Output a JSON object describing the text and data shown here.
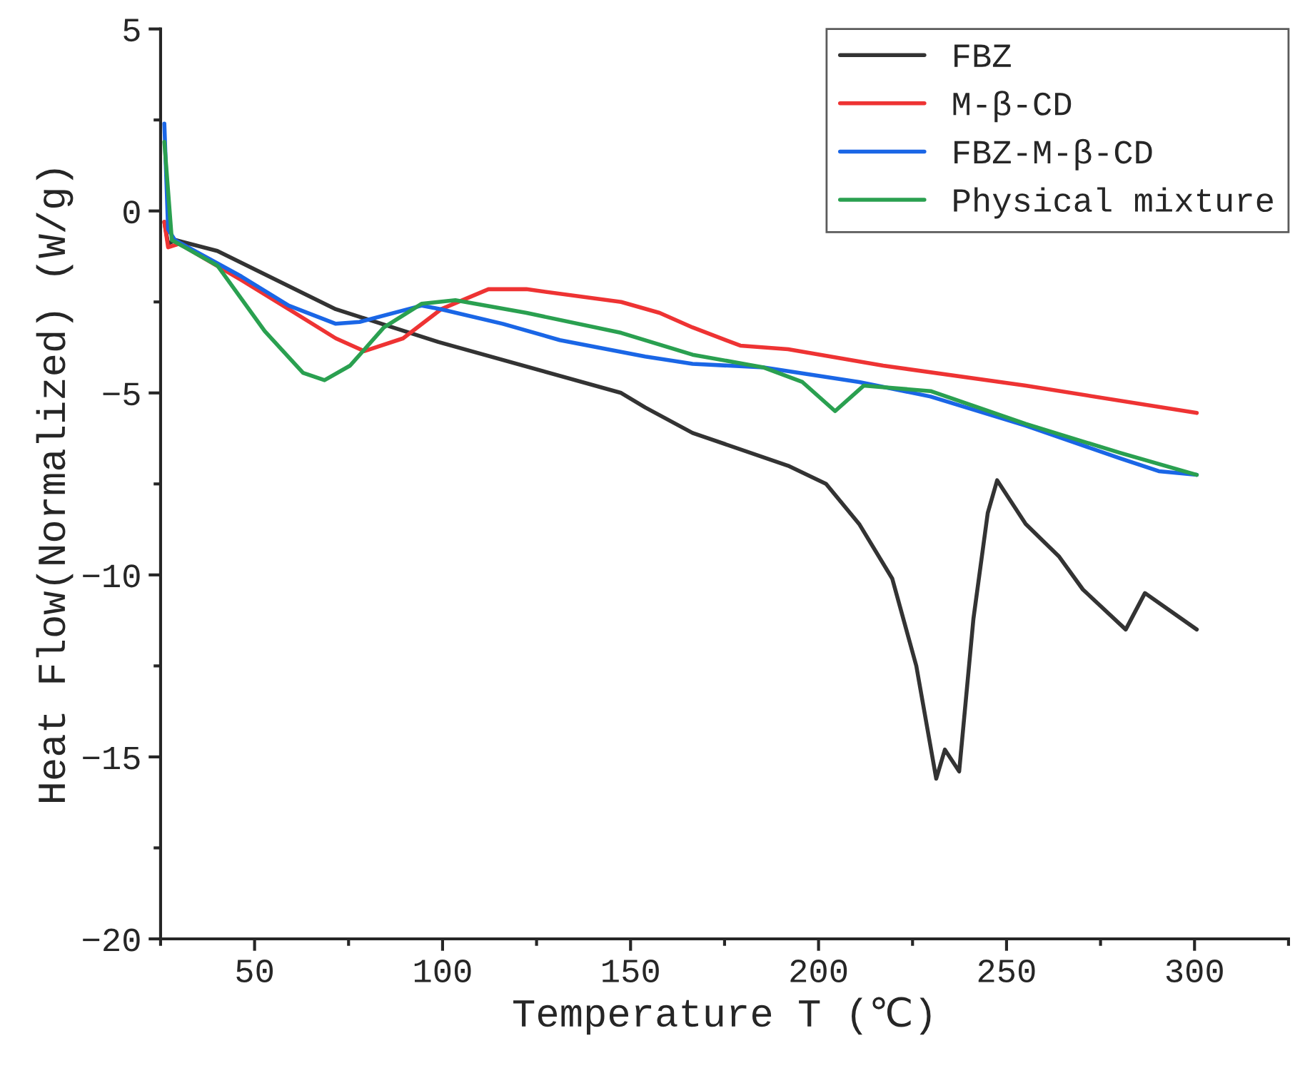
{
  "chart_data": {
    "type": "line",
    "xlabel": "Temperature T (℃)",
    "ylabel": "Heat Flow(Normalized) (W/g)",
    "xlim": [
      25,
      325
    ],
    "xticks": [
      50,
      100,
      150,
      200,
      250,
      300
    ],
    "ylim": [
      -20,
      5
    ],
    "yticks": [
      -20,
      -15,
      -10,
      -5,
      0,
      5
    ],
    "legend": "top right",
    "grid": false,
    "series": [
      {
        "name": "FBZ",
        "color": "#333333",
        "x": [
          26,
          27,
          29,
          40.1,
          71.6,
          98.9,
          147.5,
          153.9,
          166.5,
          191.9,
          202,
          210.8,
          219.6,
          226,
          231.3,
          233.6,
          237.4,
          241.2,
          245,
          247.5,
          255.1,
          264,
          270.3,
          281.7,
          286.8,
          300.6
        ],
        "values": [
          -0.3,
          -0.9,
          -0.8,
          -1.1,
          -2.7,
          -3.6,
          -5.0,
          -5.4,
          -6.1,
          -7.0,
          -7.5,
          -8.6,
          -10.1,
          -12.5,
          -15.6,
          -14.8,
          -15.4,
          -11.2,
          -8.3,
          -7.4,
          -8.6,
          -9.5,
          -10.4,
          -11.5,
          -10.5,
          -11.5
        ]
      },
      {
        "name": "M-β-CD",
        "color": "#ee3333",
        "x": [
          26,
          27,
          30,
          46.5,
          59.1,
          71.6,
          79.2,
          89.5,
          99.6,
          112.2,
          122.3,
          147.5,
          157.7,
          166.5,
          179.2,
          191.9,
          217.2,
          255.1,
          300.6
        ],
        "values": [
          -0.3,
          -1.0,
          -0.9,
          -1.9,
          -2.7,
          -3.5,
          -3.85,
          -3.5,
          -2.7,
          -2.15,
          -2.15,
          -2.5,
          -2.8,
          -3.2,
          -3.7,
          -3.8,
          -4.25,
          -4.8,
          -5.55
        ]
      },
      {
        "name": "FBZ-M-β-CD",
        "color": "#1a66e6",
        "x": [
          26,
          27,
          28.8,
          46.5,
          59.1,
          71.6,
          77.9,
          94.4,
          99.6,
          116,
          131.2,
          153.9,
          166.5,
          185.4,
          210.8,
          229.8,
          255.1,
          280.3,
          290.5,
          300.6
        ],
        "values": [
          2.4,
          -0.5,
          -0.8,
          -1.8,
          -2.6,
          -3.1,
          -3.05,
          -2.6,
          -2.7,
          -3.1,
          -3.55,
          -4.0,
          -4.2,
          -4.3,
          -4.7,
          -5.1,
          -5.9,
          -6.8,
          -7.15,
          -7.25
        ]
      },
      {
        "name": "Physical mixture",
        "color": "#2aa050",
        "x": [
          26,
          28,
          40.1,
          52.7,
          62.9,
          68.6,
          75.4,
          84.4,
          94.4,
          103.4,
          122.3,
          147.5,
          166.5,
          185.4,
          195.7,
          204.4,
          212,
          229.8,
          255.1,
          280.3,
          300.6
        ],
        "values": [
          1.9,
          -0.8,
          -1.5,
          -3.3,
          -4.45,
          -4.65,
          -4.25,
          -3.2,
          -2.55,
          -2.45,
          -2.8,
          -3.35,
          -3.95,
          -4.3,
          -4.7,
          -5.5,
          -4.8,
          -4.95,
          -5.85,
          -6.65,
          -7.25
        ]
      }
    ]
  }
}
